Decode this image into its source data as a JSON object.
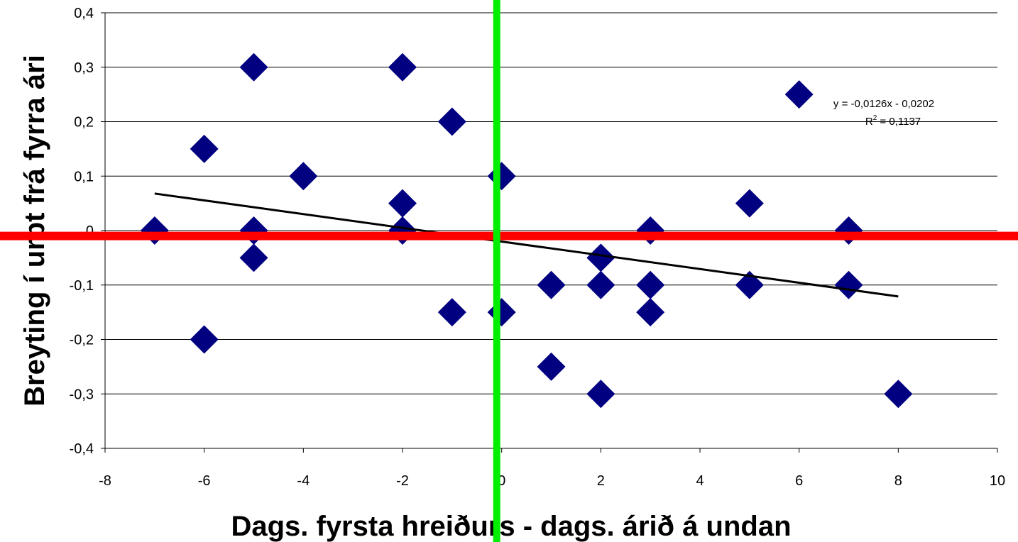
{
  "chart_data": {
    "type": "scatter",
    "x_label": "Dags. fyrsta hreiðurs - dags. árið á undan",
    "y_label": "Breyting í urpt frá fyrra ári",
    "xlim": [
      -8,
      10
    ],
    "xticks": [
      -8,
      -6,
      -4,
      -2,
      0,
      2,
      4,
      6,
      8,
      10
    ],
    "ylim": [
      -0.4,
      0.4
    ],
    "yticks": [
      {
        "value": -0.4,
        "label": "-0,4"
      },
      {
        "value": -0.3,
        "label": "-0,3"
      },
      {
        "value": -0.2,
        "label": "-0,2"
      },
      {
        "value": -0.1,
        "label": "-0,1"
      },
      0,
      {
        "value": 0.1,
        "label": "0,1"
      },
      {
        "value": 0.2,
        "label": "0,2"
      },
      {
        "value": 0.3,
        "label": "0,3"
      },
      {
        "value": 0.4,
        "label": "0,4"
      }
    ],
    "grid": true,
    "color": "#000080",
    "x": [
      -7,
      -6,
      -6,
      -5,
      -5,
      -5,
      -4,
      -2,
      -2,
      -2,
      -1,
      -1,
      0,
      0,
      1,
      1,
      2,
      2,
      2,
      3,
      3,
      3,
      5,
      5,
      6,
      7,
      7,
      8
    ],
    "values": [
      0,
      0.15,
      -0.2,
      0.3,
      0,
      -0.05,
      0.1,
      0.3,
      0.05,
      0,
      0.2,
      -0.15,
      0.1,
      -0.15,
      -0.1,
      -0.25,
      -0.05,
      -0.1,
      -0.3,
      0,
      -0.1,
      -0.15,
      0.05,
      -0.1,
      0.25,
      0,
      -0.1,
      -0.3
    ],
    "trendline": {
      "slope": -0.0126,
      "intercept": -0.0202,
      "xlim": [
        -7,
        8
      ],
      "color": "#000000",
      "equation": "y = -0,0126x - 0,0202",
      "r2_base": "R",
      "r2_sup": "2",
      "r2_rest": " = 0,1137"
    },
    "hline": {
      "value": -0.01,
      "color": "#ff0000"
    },
    "vline": {
      "value": -0.1,
      "color": "#00ee00"
    }
  }
}
